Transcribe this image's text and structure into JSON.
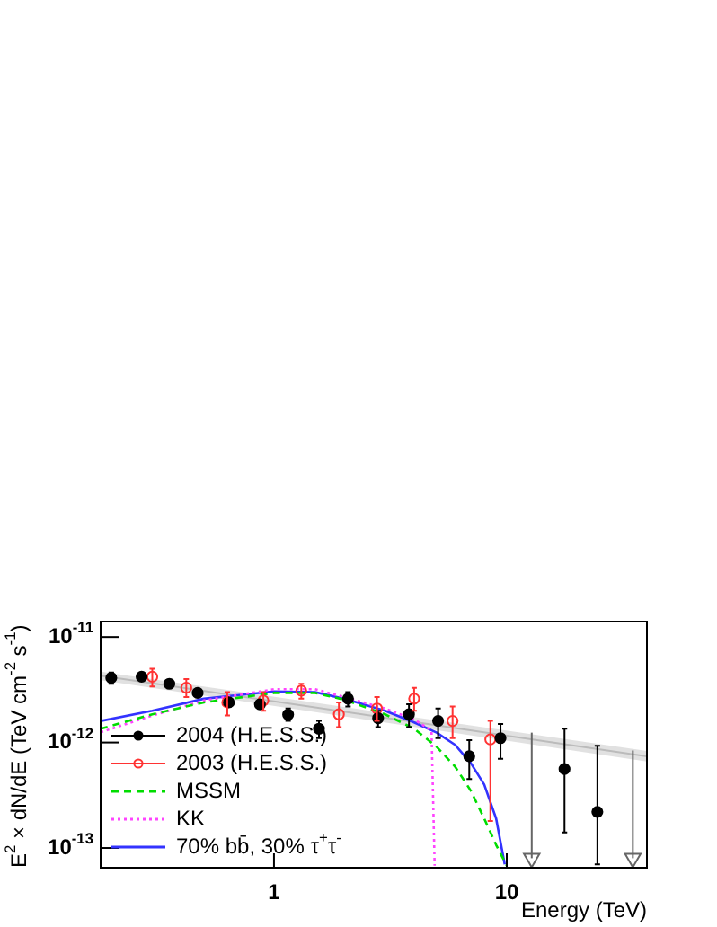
{
  "chart_data": {
    "type": "scatter",
    "xlabel": "Energy (TeV)",
    "ylabel": "E$^{2}$ × dN/dE (TeV cm$^{-2}$ s$^{-1}$)",
    "log": "xy",
    "xlim": [
      0.18,
      40
    ],
    "ylim": [
      6.5e-14,
      1.4e-11
    ],
    "xticks": [
      1,
      10
    ],
    "yticks": [
      {
        "value": 1e-13,
        "label": "10$^{-13}$"
      },
      {
        "value": 1e-12,
        "label": "10$^{-12}$"
      },
      {
        "value": 1e-11,
        "label": "10$^{-11}$"
      }
    ],
    "grid": false,
    "legend": "bottom left",
    "series": [
      {
        "type": "line",
        "line_style": "solid",
        "color": "#bbbbbb",
        "x": [
          0.18,
          40
        ],
        "values": [
          4.3e-12,
          7.4e-13
        ],
        "lower": [
          3.9e-12,
          6.6e-13
        ],
        "upper": [
          4.7e-12,
          8.3e-13
        ]
      },
      {
        "name": "2004 (H.E.S.S.)",
        "marker": "circle",
        "color": "#000000",
        "x": [
          0.2,
          0.27,
          0.355,
          0.47,
          0.64,
          0.87,
          1.15,
          1.56,
          2.08,
          2.8,
          3.8,
          5.07,
          6.9,
          9.4,
          17.7,
          24.5
        ],
        "values": [
          4.1e-12,
          4.2e-12,
          3.6e-12,
          2.95e-12,
          2.4e-12,
          2.3e-12,
          1.84e-12,
          1.35e-12,
          2.6e-12,
          1.7e-12,
          1.85e-12,
          1.6e-12,
          7.4e-13,
          1.1e-12,
          5.6e-13,
          2.2e-13
        ],
        "errors": [
          [
            3.6e-12,
            4.6e-12
          ],
          [
            3.9e-12,
            4.5e-12
          ],
          [
            3.4e-12,
            3.8e-12
          ],
          [
            2.8e-12,
            3.1e-12
          ],
          [
            2.2e-12,
            2.6e-12
          ],
          [
            2.1e-12,
            2.5e-12
          ],
          [
            1.6e-12,
            2.1e-12
          ],
          [
            1.1e-12,
            1.6e-12
          ],
          [
            2.2e-12,
            3e-12
          ],
          [
            1.4e-12,
            2e-12
          ],
          [
            1.4e-12,
            2.3e-12
          ],
          [
            1.1e-12,
            2.1e-12
          ],
          [
            4.5e-13,
            1.05e-12
          ],
          [
            7e-13,
            1.5e-12
          ],
          [
            1.4e-13,
            1.35e-12
          ],
          [
            7e-14,
            9.3e-13
          ]
        ]
      },
      {
        "marker": "triangle",
        "color": "#666666",
        "x": [
          12.8,
          34.8
        ],
        "values": [
          8e-14,
          8e-14
        ],
        "errors": [
          [
            8e-14,
            1.24e-12
          ],
          [
            8e-14,
            8.4e-13
          ]
        ]
      },
      {
        "name": "2003 (H.E.S.S.)",
        "marker": "circle",
        "color": "#ff3333",
        "x": [
          0.3,
          0.42,
          0.63,
          0.9,
          1.31,
          1.9,
          2.77,
          4.0,
          5.85,
          8.5
        ],
        "values": [
          4.2e-12,
          3.3e-12,
          2.4e-12,
          2.5e-12,
          3.1e-12,
          1.85e-12,
          2.1e-12,
          2.6e-12,
          1.6e-12,
          1.07e-12
        ],
        "errors": [
          [
            3.4e-12,
            5e-12
          ],
          [
            2.7e-12,
            4e-12
          ],
          [
            1.8e-12,
            3e-12
          ],
          [
            2e-12,
            3e-12
          ],
          [
            2.6e-12,
            3.6e-12
          ],
          [
            1.4e-12,
            2.4e-12
          ],
          [
            1.6e-12,
            2.7e-12
          ],
          [
            2e-12,
            3.3e-12
          ],
          [
            1.1e-12,
            2.2e-12
          ],
          [
            1.8e-13,
            1.6e-12
          ]
        ]
      },
      {
        "name": "MSSM",
        "type": "line",
        "line_style": "dashed",
        "color": "#00dd00",
        "x": [
          0.18,
          0.3,
          0.5,
          1,
          1.5,
          2,
          3,
          4,
          5,
          6,
          7,
          8,
          9,
          10
        ],
        "values": [
          1.35e-12,
          1.85e-12,
          2.4e-12,
          2.95e-12,
          2.95e-12,
          2.55e-12,
          1.85e-12,
          1.35e-12,
          9.1e-13,
          5.9e-13,
          3.5e-13,
          1.9e-13,
          1.07e-13,
          6.8e-14
        ]
      },
      {
        "name": "KK",
        "type": "line",
        "line_style": "dotted",
        "color": "#ff44ff",
        "x": [
          0.18,
          0.3,
          0.5,
          1,
          1.5,
          2,
          3,
          4,
          4.5,
          4.75,
          4.9
        ],
        "values": [
          1.25e-12,
          1.8e-12,
          2.5e-12,
          3.2e-12,
          3.2e-12,
          2.7e-12,
          2.1e-12,
          1.65e-12,
          1.4e-12,
          1.3e-12,
          6.8e-14
        ]
      },
      {
        "name": "70% bb̄, 30% τ$^{+}$τ$^{-}$",
        "type": "line",
        "line_style": "solid",
        "color": "#3333ff",
        "x": [
          0.18,
          0.3,
          0.5,
          1,
          1.5,
          2,
          3,
          4,
          5,
          6,
          7,
          8,
          9,
          9.8
        ],
        "values": [
          1.6e-12,
          2e-12,
          2.6e-12,
          3.05e-12,
          3e-12,
          2.6e-12,
          2e-12,
          1.55e-12,
          1.24e-12,
          9.5e-13,
          6.4e-13,
          4e-13,
          1.9e-13,
          7e-14
        ]
      }
    ]
  }
}
